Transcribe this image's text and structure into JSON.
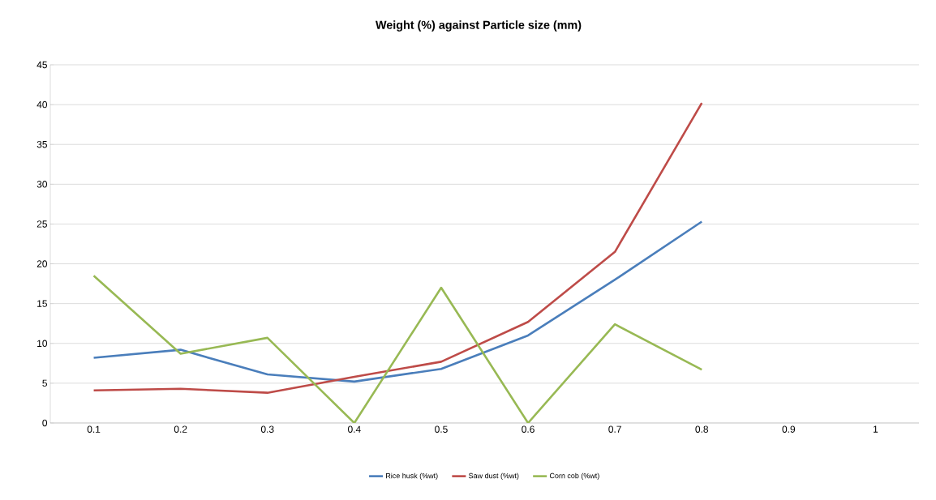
{
  "chart_data": {
    "type": "line",
    "title": "Weight (%) against Particle size (mm)",
    "categories": [
      "0.1",
      "0.2",
      "0.3",
      "0.4",
      "0.5",
      "0.6",
      "0.7",
      "0.8",
      "0.9",
      "1"
    ],
    "series": [
      {
        "name": "Rice husk (%wt)",
        "color": "#4a7ebb",
        "values": [
          8.2,
          9.2,
          6.1,
          5.2,
          6.8,
          11.0,
          18.0,
          25.3,
          null,
          null
        ]
      },
      {
        "name": "Saw dust (%wt)",
        "color": "#be4b48",
        "values": [
          4.1,
          4.3,
          3.8,
          5.8,
          7.7,
          12.7,
          21.5,
          40.2,
          null,
          null
        ]
      },
      {
        "name": "Corn cob (%wt)",
        "color": "#98b954",
        "values": [
          18.5,
          8.7,
          10.7,
          0,
          17.0,
          0,
          12.4,
          6.7,
          null,
          null
        ]
      }
    ],
    "ylim": [
      0,
      45
    ],
    "yticks": [
      0,
      5,
      10,
      15,
      20,
      25,
      30,
      35,
      40,
      45
    ],
    "grid": "y",
    "legend": "bottom",
    "marker": "none",
    "line_style": "solid"
  }
}
